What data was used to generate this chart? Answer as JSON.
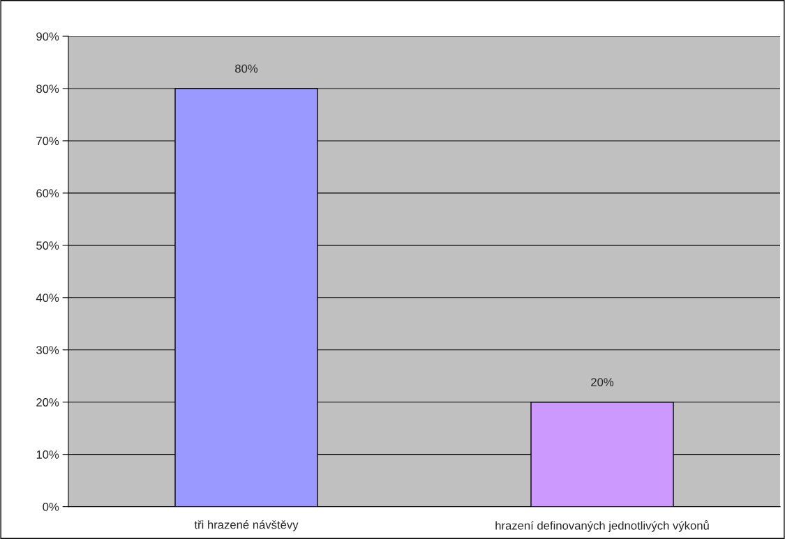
{
  "chart_data": {
    "type": "bar",
    "categories": [
      "tři hrazené návštěvy",
      "hrazení definovaných jednotlivých výkonů"
    ],
    "values": [
      80,
      20
    ],
    "colors": [
      "#9999ff",
      "#cc99ff"
    ],
    "value_labels": [
      "80%",
      "20%"
    ],
    "ylim": [
      0,
      90
    ],
    "yticks": [
      {
        "value": 0,
        "label": "0%"
      },
      {
        "value": 10,
        "label": "10%"
      },
      {
        "value": 20,
        "label": "20%"
      },
      {
        "value": 30,
        "label": "30%"
      },
      {
        "value": 40,
        "label": "40%"
      },
      {
        "value": 50,
        "label": "50%"
      },
      {
        "value": 60,
        "label": "60%"
      },
      {
        "value": 70,
        "label": "70%"
      },
      {
        "value": 80,
        "label": "80%"
      },
      {
        "value": 90,
        "label": "90%"
      }
    ],
    "grid": "y",
    "legend": false
  }
}
